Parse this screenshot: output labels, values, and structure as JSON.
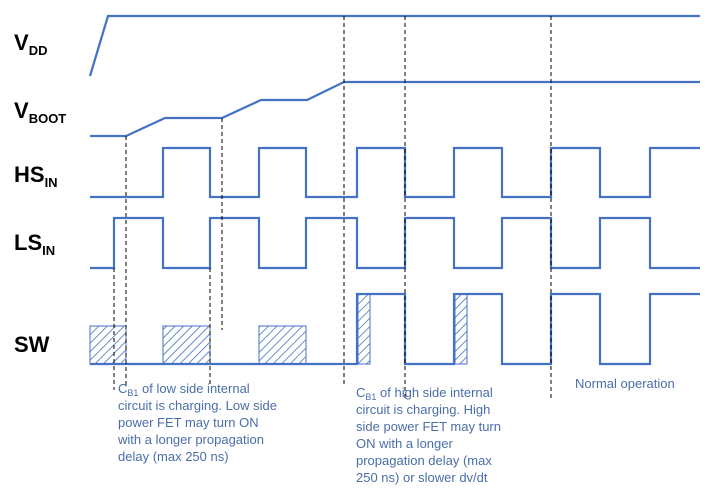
{
  "signals": [
    {
      "id": "vdd",
      "main": "V",
      "sub": "DD"
    },
    {
      "id": "vboot",
      "main": "V",
      "sub": "BOOT"
    },
    {
      "id": "hsin",
      "main": "HS",
      "sub": "IN"
    },
    {
      "id": "lsin",
      "main": "LS",
      "sub": "IN"
    },
    {
      "id": "sw",
      "main": "SW",
      "sub": ""
    }
  ],
  "annotations": {
    "low_side": [
      "C_B1 of low side internal",
      "circuit is charging. Low side",
      "power FET may turn ON",
      "with a longer propagation",
      "delay (max 250 ns)"
    ],
    "high_side": [
      "C_B1 of high side internal",
      "circuit is charging. High",
      "side power FET may turn",
      "ON with a longer",
      "propagation delay (max",
      "250 ns) or slower dv/dt"
    ],
    "normal": "Normal operation"
  },
  "annotation_prefix": {
    "main": "C",
    "sub": "B1"
  },
  "colors": {
    "waveform": "#4472c4",
    "annotation_text": "#4a6ea9",
    "labels": "#000000",
    "guides": "#000000"
  }
}
